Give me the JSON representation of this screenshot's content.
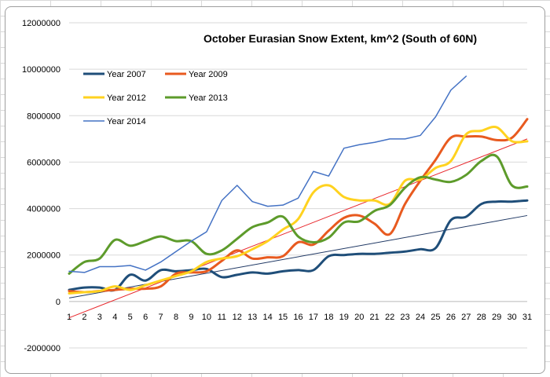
{
  "chart_data": {
    "type": "line",
    "title": "October Eurasian Snow Extent, km^2 (South of 60N)",
    "xlabel": "",
    "ylabel": "",
    "x": [
      1,
      2,
      3,
      4,
      5,
      6,
      7,
      8,
      9,
      10,
      11,
      12,
      13,
      14,
      15,
      16,
      17,
      18,
      19,
      20,
      21,
      22,
      23,
      24,
      25,
      26,
      27,
      28,
      29,
      30,
      31
    ],
    "x_ticks": [
      "1",
      "2",
      "3",
      "4",
      "5",
      "6",
      "7",
      "8",
      "9",
      "10",
      "11",
      "12",
      "13",
      "14",
      "15",
      "16",
      "17",
      "18",
      "19",
      "20",
      "21",
      "22",
      "23",
      "24",
      "25",
      "26",
      "27",
      "28",
      "29",
      "30",
      "31"
    ],
    "ylim": [
      -2000000,
      12000000
    ],
    "y_ticks": [
      -2000000,
      0,
      2000000,
      4000000,
      6000000,
      8000000,
      10000000,
      12000000
    ],
    "y_tick_labels": [
      "-2000000",
      "0",
      "2000000",
      "4000000",
      "6000000",
      "8000000",
      "10000000",
      "12000000"
    ],
    "grid": "horizontal",
    "legend_placement": "top-left",
    "series": [
      {
        "name": "Year 2007",
        "color": "#1f4e79",
        "smooth": true,
        "width": 3,
        "values": [
          500000,
          600000,
          600000,
          500000,
          1150000,
          900000,
          1350000,
          1300000,
          1350000,
          1400000,
          1050000,
          1150000,
          1250000,
          1200000,
          1300000,
          1350000,
          1350000,
          1950000,
          2000000,
          2050000,
          2050000,
          2100000,
          2150000,
          2250000,
          2300000,
          3500000,
          3650000,
          4200000,
          4300000,
          4300000,
          4350000
        ]
      },
      {
        "name": "Year 2009",
        "color": "#e85a1f",
        "smooth": true,
        "width": 3,
        "values": [
          450000,
          400000,
          450000,
          500000,
          550000,
          550000,
          650000,
          1200000,
          1250000,
          1300000,
          1750000,
          2200000,
          1850000,
          1900000,
          1950000,
          2550000,
          2450000,
          3050000,
          3600000,
          3700000,
          3350000,
          2900000,
          4200000,
          5200000,
          6100000,
          7050000,
          7100000,
          7100000,
          6950000,
          7050000,
          7850000
        ]
      },
      {
        "name": "Year 2012",
        "color": "#ffd21f",
        "smooth": true,
        "width": 3,
        "values": [
          350000,
          400000,
          450000,
          650000,
          500000,
          700000,
          900000,
          1100000,
          1300000,
          1700000,
          1850000,
          1950000,
          2250000,
          2600000,
          3100000,
          3550000,
          4700000,
          5000000,
          4500000,
          4350000,
          4350000,
          4200000,
          5200000,
          5250000,
          5750000,
          6050000,
          7200000,
          7350000,
          7500000,
          6900000,
          6900000
        ]
      },
      {
        "name": "Year 2013",
        "color": "#5d9b2b",
        "smooth": true,
        "width": 3,
        "values": [
          1200000,
          1700000,
          1850000,
          2650000,
          2400000,
          2600000,
          2800000,
          2600000,
          2600000,
          2050000,
          2200000,
          2700000,
          3200000,
          3400000,
          3650000,
          2800000,
          2550000,
          2750000,
          3400000,
          3450000,
          3900000,
          4150000,
          4900000,
          5350000,
          5250000,
          5150000,
          5450000,
          6050000,
          6250000,
          5000000,
          4950000
        ]
      },
      {
        "name": "Year 2014",
        "color": "#4472c4",
        "smooth": false,
        "width": 1.5,
        "values": [
          1300000,
          1250000,
          1500000,
          1500000,
          1550000,
          1350000,
          1700000,
          2150000,
          2600000,
          3000000,
          4350000,
          5000000,
          4300000,
          4100000,
          4150000,
          4450000,
          5600000,
          5400000,
          6600000,
          6750000,
          6850000,
          7000000,
          7000000,
          7150000,
          7950000,
          9100000,
          9700000,
          null,
          null,
          null,
          null
        ]
      }
    ],
    "trendlines": [
      {
        "color": "#1f3864",
        "from": [
          1,
          150000
        ],
        "to": [
          31,
          3700000
        ]
      },
      {
        "color": "#e8272c",
        "from": [
          1,
          -700000
        ],
        "to": [
          31,
          7000000
        ]
      }
    ],
    "legend": {
      "columns": [
        [
          "Year 2007",
          "Year 2012",
          "Year 2014"
        ],
        [
          "Year 2009",
          "Year 2013"
        ]
      ]
    }
  }
}
